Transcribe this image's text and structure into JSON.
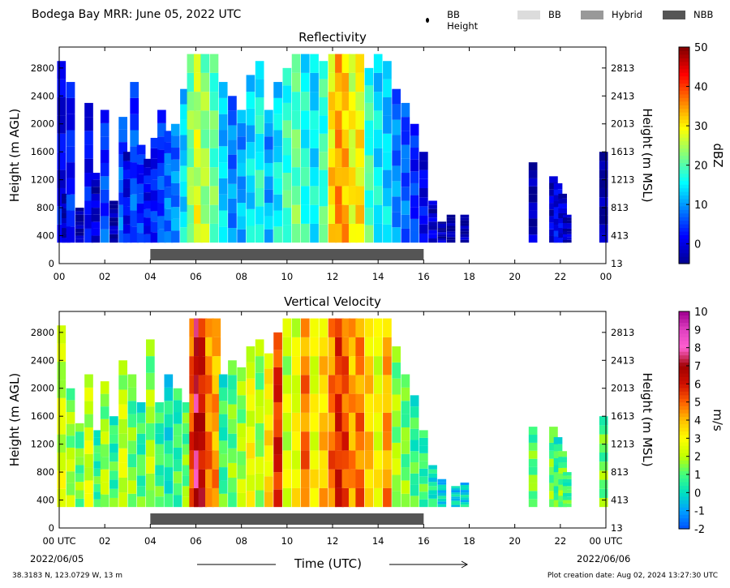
{
  "page": {
    "title": "Bodega Bay MRR:  June 05, 2022 UTC",
    "legend": [
      {
        "label": "BB Height",
        "kind": "dot",
        "color": "#000000"
      },
      {
        "label": "BB",
        "kind": "swatch",
        "color": "#dcdcdc"
      },
      {
        "label": "Hybrid",
        "kind": "swatch",
        "color": "#999999"
      },
      {
        "label": "NBB",
        "kind": "swatch",
        "color": "#555555"
      }
    ],
    "xlabel": "Time (UTC)",
    "date_start": "2022/06/05",
    "date_end": "2022/06/06",
    "footer_location": "38.3183 N, 123.0729 W, 13 m",
    "footer_created": "Plot creation date: Aug 02, 2024 13:27:30 UTC"
  },
  "chart_data": [
    {
      "type": "heatmap",
      "title": "Reflectivity",
      "ylabel": "Height (m AGL)",
      "ylabel_right": "Height (m MSL)",
      "colorbar_label": "dBZ",
      "colorbar_range": [
        -5,
        50
      ],
      "colorbar_ticks": [
        "0",
        "10",
        "20",
        "30",
        "40",
        "50"
      ],
      "colorbar_tick_values": [
        0,
        10,
        20,
        30,
        40,
        50
      ],
      "colormap": [
        "#00008f",
        "#0000ff",
        "#0080ff",
        "#00ffff",
        "#80ff80",
        "#ffff00",
        "#ff8000",
        "#ff0000",
        "#800000"
      ],
      "xlim": [
        0,
        24
      ],
      "x_tick_labels": [
        "00",
        "02",
        "04",
        "06",
        "08",
        "10",
        "12",
        "14",
        "16",
        "18",
        "20",
        "22",
        "00"
      ],
      "ylim": [
        0,
        3100
      ],
      "y_ticks": [
        0,
        400,
        800,
        1200,
        1600,
        2000,
        2400,
        2800
      ],
      "y_ticks_right": [
        "13",
        "413",
        "813",
        "1213",
        "1613",
        "2013",
        "2413",
        "2813"
      ],
      "data_base_m": 300,
      "nbb_bar": {
        "start": 4.0,
        "end": 16.0,
        "label": "NBB"
      },
      "columns": [
        {
          "x": 0.1,
          "top": 2900,
          "value": 2
        },
        {
          "x": 0.3,
          "top": 1000,
          "value": -2
        },
        {
          "x": 0.5,
          "top": 2600,
          "value": 4
        },
        {
          "x": 0.9,
          "top": 800,
          "value": -3
        },
        {
          "x": 1.3,
          "top": 2300,
          "value": 3
        },
        {
          "x": 1.6,
          "top": 1300,
          "value": 0
        },
        {
          "x": 2.0,
          "top": 2200,
          "value": 6
        },
        {
          "x": 2.4,
          "top": 900,
          "value": -2
        },
        {
          "x": 2.8,
          "top": 2100,
          "value": 8
        },
        {
          "x": 3.0,
          "top": 1600,
          "value": 2
        },
        {
          "x": 3.3,
          "top": 2600,
          "value": 7
        },
        {
          "x": 3.6,
          "top": 1700,
          "value": 5
        },
        {
          "x": 3.9,
          "top": 1500,
          "value": 3
        },
        {
          "x": 4.2,
          "top": 1800,
          "value": 4
        },
        {
          "x": 4.5,
          "top": 2200,
          "value": 6
        },
        {
          "x": 4.8,
          "top": 1900,
          "value": 9
        },
        {
          "x": 5.1,
          "top": 2000,
          "value": 10
        },
        {
          "x": 5.5,
          "top": 2500,
          "value": 15
        },
        {
          "x": 5.8,
          "top": 3000,
          "value": 24
        },
        {
          "x": 6.1,
          "top": 3000,
          "value": 28
        },
        {
          "x": 6.4,
          "top": 3000,
          "value": 25
        },
        {
          "x": 6.8,
          "top": 3000,
          "value": 22
        },
        {
          "x": 7.2,
          "top": 2600,
          "value": 14
        },
        {
          "x": 7.6,
          "top": 2400,
          "value": 10
        },
        {
          "x": 8.0,
          "top": 2200,
          "value": 12
        },
        {
          "x": 8.4,
          "top": 2700,
          "value": 15
        },
        {
          "x": 8.8,
          "top": 2900,
          "value": 18
        },
        {
          "x": 9.2,
          "top": 2200,
          "value": 12
        },
        {
          "x": 9.6,
          "top": 2600,
          "value": 16
        },
        {
          "x": 10.0,
          "top": 2800,
          "value": 20
        },
        {
          "x": 10.4,
          "top": 3000,
          "value": 22
        },
        {
          "x": 10.8,
          "top": 3000,
          "value": 18
        },
        {
          "x": 11.2,
          "top": 3000,
          "value": 16
        },
        {
          "x": 11.6,
          "top": 2900,
          "value": 20
        },
        {
          "x": 12.0,
          "top": 3000,
          "value": 32
        },
        {
          "x": 12.3,
          "top": 3000,
          "value": 36
        },
        {
          "x": 12.6,
          "top": 3000,
          "value": 34
        },
        {
          "x": 12.9,
          "top": 3000,
          "value": 30
        },
        {
          "x": 13.2,
          "top": 3000,
          "value": 31
        },
        {
          "x": 13.6,
          "top": 2800,
          "value": 20
        },
        {
          "x": 14.0,
          "top": 3000,
          "value": 16
        },
        {
          "x": 14.4,
          "top": 2900,
          "value": 14
        },
        {
          "x": 14.8,
          "top": 2500,
          "value": 10
        },
        {
          "x": 15.2,
          "top": 2300,
          "value": 8
        },
        {
          "x": 15.6,
          "top": 2000,
          "value": 5
        },
        {
          "x": 16.0,
          "top": 1600,
          "value": 2
        },
        {
          "x": 16.4,
          "top": 900,
          "value": 0
        },
        {
          "x": 16.8,
          "top": 600,
          "value": -2
        },
        {
          "x": 17.2,
          "top": 700,
          "value": -3
        },
        {
          "x": 17.8,
          "top": 700,
          "value": -3
        },
        {
          "x": 20.8,
          "top": 1450,
          "value": -2
        },
        {
          "x": 21.7,
          "top": 1250,
          "value": 0
        },
        {
          "x": 21.9,
          "top": 1150,
          "value": 2
        },
        {
          "x": 22.1,
          "top": 1000,
          "value": 1
        },
        {
          "x": 22.3,
          "top": 700,
          "value": -1
        },
        {
          "x": 23.9,
          "top": 1600,
          "value": -3
        }
      ]
    },
    {
      "type": "heatmap",
      "title": "Vertical Velocity",
      "ylabel": "Height (m AGL)",
      "ylabel_right": "Height (m MSL)",
      "colorbar_label": "m/s",
      "colorbar_range": [
        -2,
        10
      ],
      "colorbar_ticks": [
        "-2",
        "-1",
        "0",
        "1",
        "2",
        "3",
        "4",
        "5",
        "6",
        "7",
        "8",
        "9",
        "10"
      ],
      "colorbar_tick_values": [
        -2,
        -1,
        0,
        1,
        2,
        3,
        4,
        5,
        6,
        7,
        8,
        9,
        10
      ],
      "colormap": [
        "#0050ff",
        "#00a0ff",
        "#00e0c0",
        "#40ff80",
        "#c0ff00",
        "#ffff00",
        "#ffc000",
        "#ff6000",
        "#d01000",
        "#a00000",
        "#ff60d0",
        "#e040c0",
        "#a00090"
      ],
      "xlim": [
        0,
        24
      ],
      "x_tick_labels": [
        "00 UTC",
        "02",
        "04",
        "06",
        "08",
        "10",
        "12",
        "14",
        "16",
        "18",
        "20",
        "22",
        "00 UTC"
      ],
      "ylim": [
        0,
        3100
      ],
      "y_ticks": [
        0,
        400,
        800,
        1200,
        1600,
        2000,
        2400,
        2800
      ],
      "y_ticks_right": [
        "13",
        "413",
        "813",
        "1213",
        "1613",
        "2013",
        "2413",
        "2813"
      ],
      "data_base_m": 300,
      "nbb_bar": {
        "start": 4.0,
        "end": 16.0,
        "label": "NBB"
      },
      "columns": [
        {
          "x": 0.1,
          "top": 2900,
          "value": 2.5
        },
        {
          "x": 0.5,
          "top": 2000,
          "value": 2.0
        },
        {
          "x": 0.9,
          "top": 1500,
          "value": 1.5
        },
        {
          "x": 1.3,
          "top": 2200,
          "value": 2.5
        },
        {
          "x": 1.7,
          "top": 1400,
          "value": 1.0
        },
        {
          "x": 2.0,
          "top": 2100,
          "value": 2.0
        },
        {
          "x": 2.4,
          "top": 1600,
          "value": 1.0
        },
        {
          "x": 2.8,
          "top": 2400,
          "value": 2.5
        },
        {
          "x": 3.2,
          "top": 2200,
          "value": 1.5
        },
        {
          "x": 3.6,
          "top": 1800,
          "value": 1.0
        },
        {
          "x": 4.0,
          "top": 2700,
          "value": 2.0
        },
        {
          "x": 4.4,
          "top": 1800,
          "value": 1.0
        },
        {
          "x": 4.8,
          "top": 2200,
          "value": 0.5
        },
        {
          "x": 5.2,
          "top": 2000,
          "value": 1.0
        },
        {
          "x": 5.6,
          "top": 1800,
          "value": 1.5
        },
        {
          "x": 5.9,
          "top": 3000,
          "value": 5.5
        },
        {
          "x": 6.1,
          "top": 3000,
          "value": 7.5
        },
        {
          "x": 6.3,
          "top": 3000,
          "value": 6.5
        },
        {
          "x": 6.6,
          "top": 3000,
          "value": 5.0
        },
        {
          "x": 6.9,
          "top": 3000,
          "value": 4.5
        },
        {
          "x": 7.2,
          "top": 2200,
          "value": 1.0
        },
        {
          "x": 7.6,
          "top": 2400,
          "value": 1.5
        },
        {
          "x": 8.0,
          "top": 2300,
          "value": 2.0
        },
        {
          "x": 8.4,
          "top": 2600,
          "value": 3.0
        },
        {
          "x": 8.8,
          "top": 2700,
          "value": 2.0
        },
        {
          "x": 9.2,
          "top": 2500,
          "value": 3.5
        },
        {
          "x": 9.6,
          "top": 2800,
          "value": 6.0
        },
        {
          "x": 10.0,
          "top": 3000,
          "value": 2.5
        },
        {
          "x": 10.4,
          "top": 3000,
          "value": 3.0
        },
        {
          "x": 10.8,
          "top": 3000,
          "value": 5.0
        },
        {
          "x": 11.2,
          "top": 3000,
          "value": 3.0
        },
        {
          "x": 11.6,
          "top": 3000,
          "value": 4.0
        },
        {
          "x": 12.0,
          "top": 3000,
          "value": 5.0
        },
        {
          "x": 12.3,
          "top": 3000,
          "value": 6.0
        },
        {
          "x": 12.6,
          "top": 3000,
          "value": 5.5
        },
        {
          "x": 12.9,
          "top": 3000,
          "value": 4.5
        },
        {
          "x": 13.2,
          "top": 3000,
          "value": 5.0
        },
        {
          "x": 13.6,
          "top": 3000,
          "value": 4.0
        },
        {
          "x": 14.0,
          "top": 3000,
          "value": 3.0
        },
        {
          "x": 14.4,
          "top": 3000,
          "value": 4.5
        },
        {
          "x": 14.8,
          "top": 2600,
          "value": 2.0
        },
        {
          "x": 15.2,
          "top": 2200,
          "value": 1.5
        },
        {
          "x": 15.6,
          "top": 1900,
          "value": 1.0
        },
        {
          "x": 16.0,
          "top": 1400,
          "value": 1.0
        },
        {
          "x": 16.4,
          "top": 900,
          "value": 0.5
        },
        {
          "x": 16.8,
          "top": 700,
          "value": 0.0
        },
        {
          "x": 17.4,
          "top": 600,
          "value": 0.0
        },
        {
          "x": 17.8,
          "top": 650,
          "value": 0.0
        },
        {
          "x": 20.8,
          "top": 1450,
          "value": 1.5
        },
        {
          "x": 21.7,
          "top": 1450,
          "value": 1.5
        },
        {
          "x": 21.9,
          "top": 1300,
          "value": 1.0
        },
        {
          "x": 22.1,
          "top": 1100,
          "value": 1.5
        },
        {
          "x": 22.3,
          "top": 800,
          "value": 1.0
        },
        {
          "x": 23.9,
          "top": 1600,
          "value": 1.5
        }
      ]
    }
  ]
}
